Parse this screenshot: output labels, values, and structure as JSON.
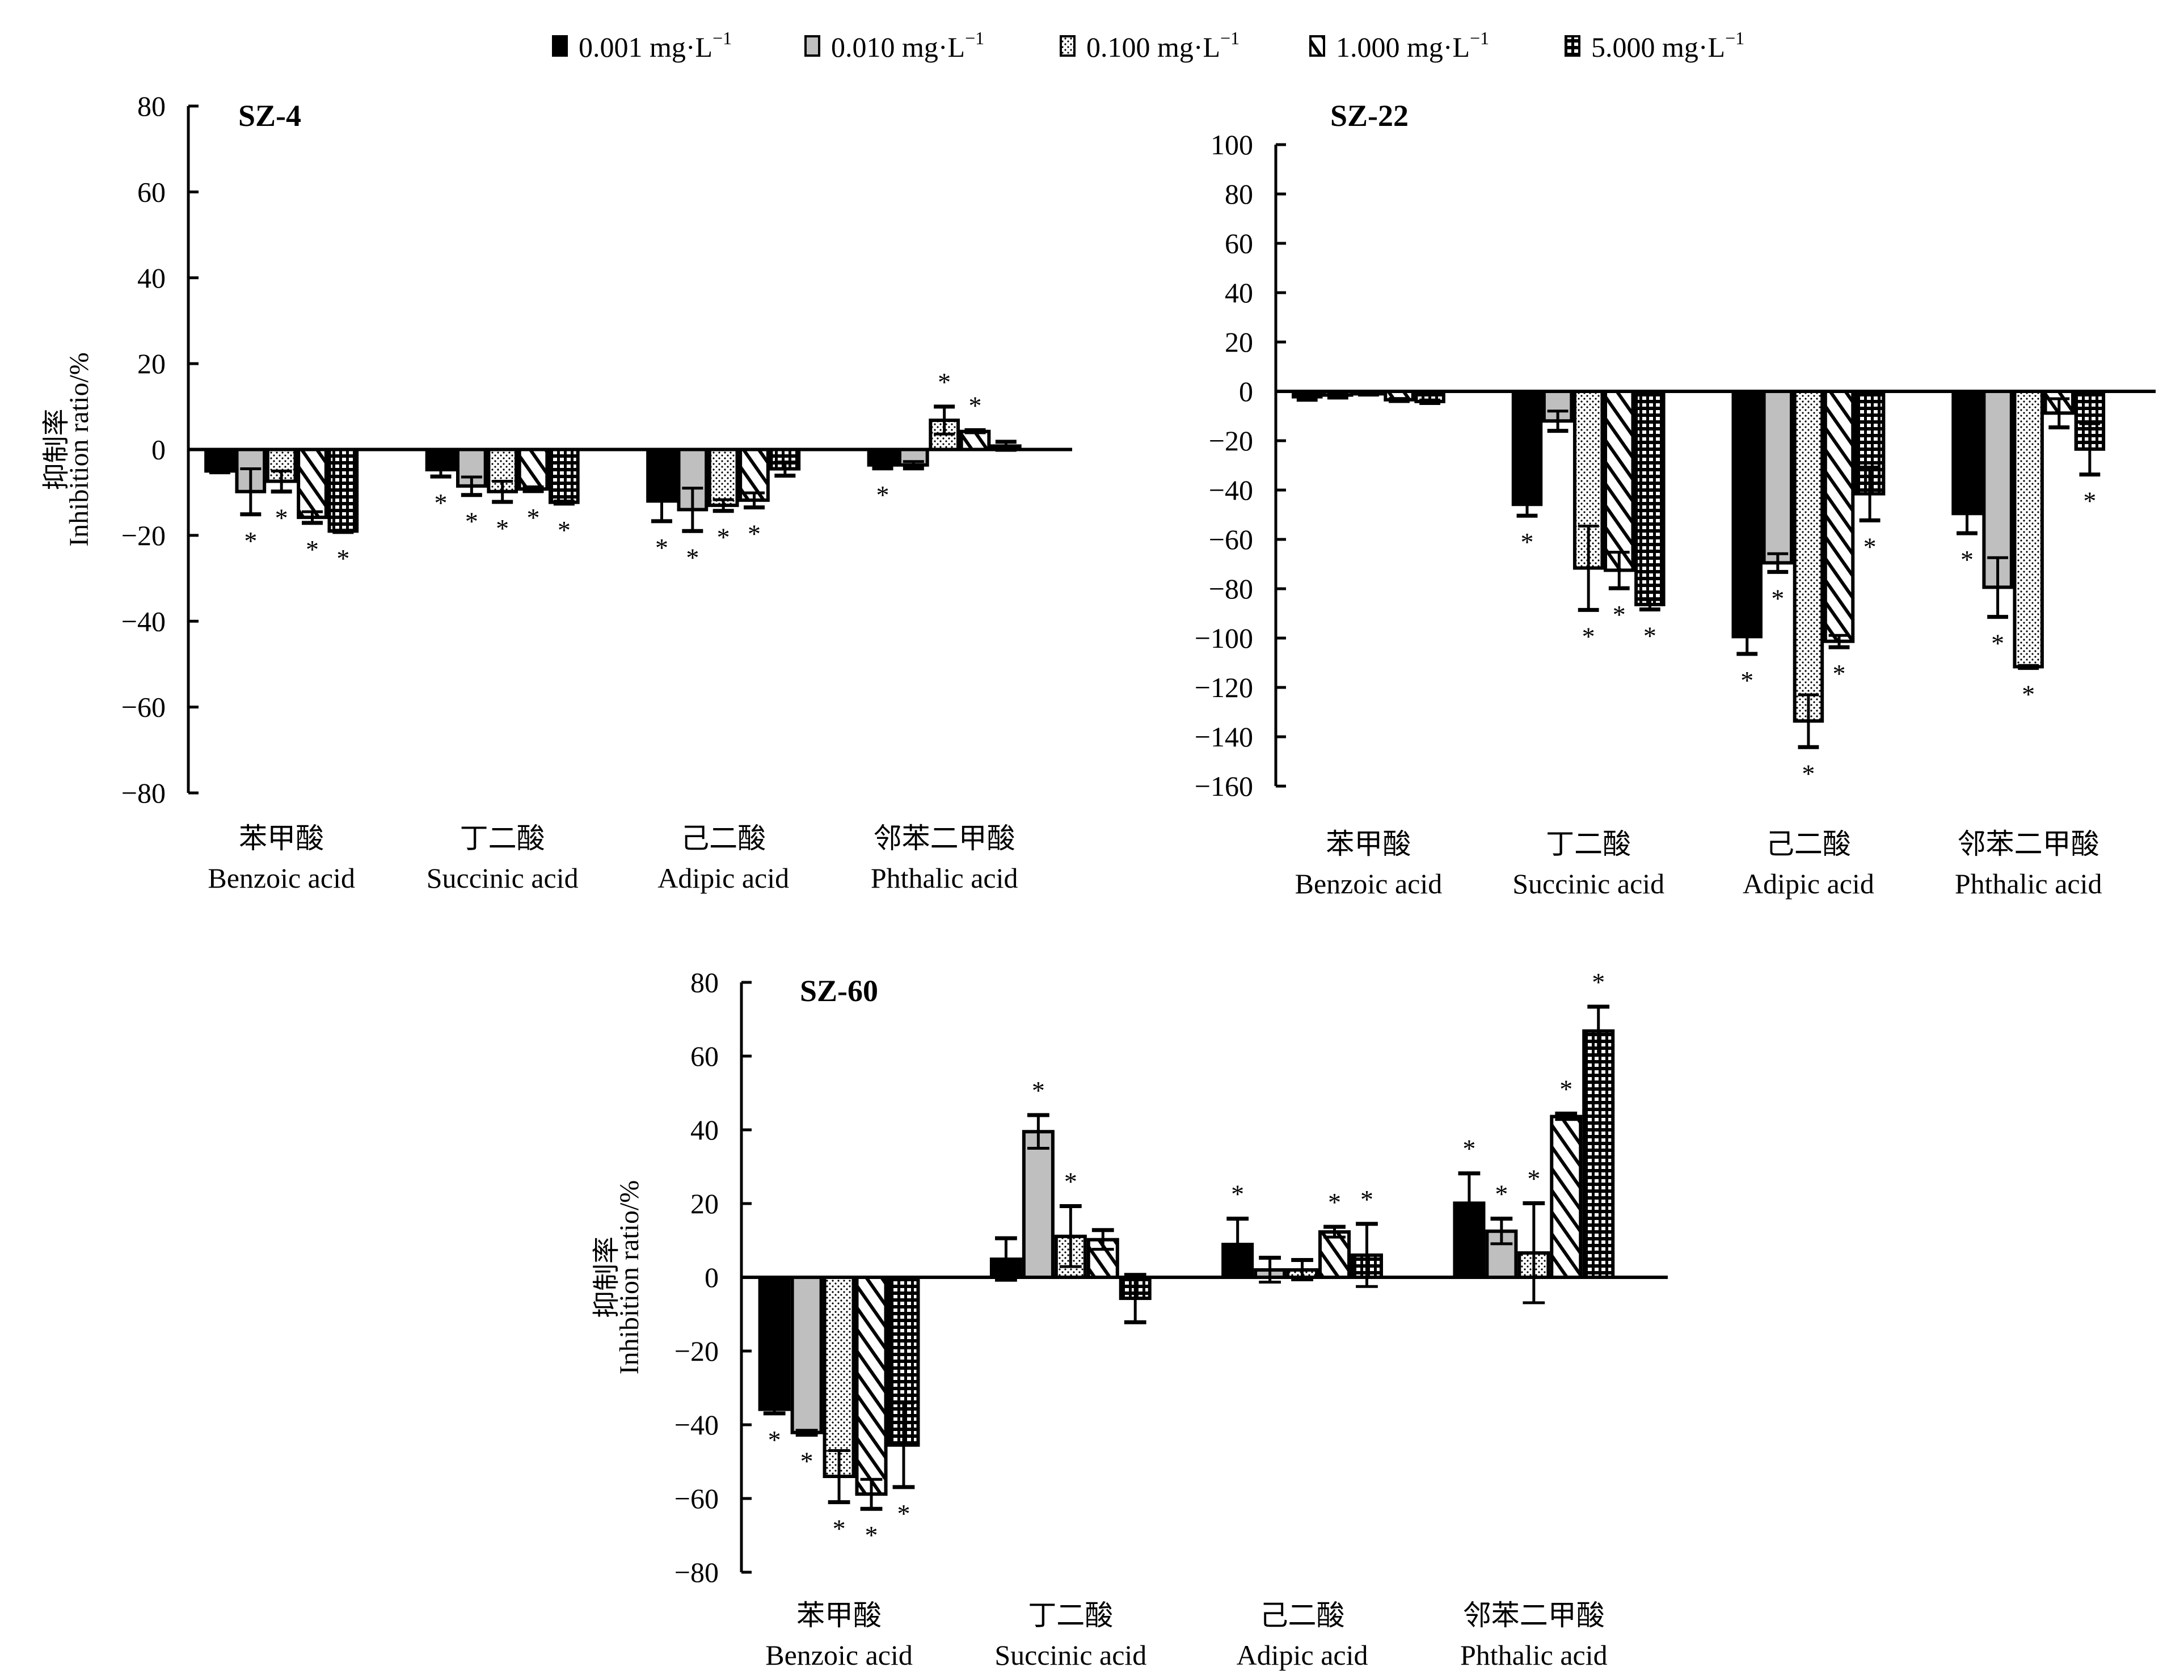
{
  "legend": [
    {
      "label": "0.001 mg·L",
      "sup": "−1",
      "pattern": "solid-black"
    },
    {
      "label": "0.010 mg·L",
      "sup": "−1",
      "pattern": "gray"
    },
    {
      "label": "0.100 mg·L",
      "sup": "−1",
      "pattern": "dots"
    },
    {
      "label": "1.000 mg·L",
      "sup": "−1",
      "pattern": "diagonal"
    },
    {
      "label": "5.000 mg·L",
      "sup": "−1",
      "pattern": "grid"
    }
  ],
  "colors": {
    "black": "#000000",
    "gray": "#bfbfbf",
    "white": "#ffffff"
  },
  "chart_data": [
    {
      "type": "bar",
      "title": "SZ-4",
      "ylabel_cn": "抑制率",
      "ylabel": "Inhibition ratio/%",
      "ylim": [
        -80,
        80
      ],
      "yticks": [
        80,
        60,
        40,
        20,
        0,
        -20,
        -40,
        -60,
        -80
      ],
      "categories": [
        {
          "cn": "苯甲酸",
          "en": "Benzoic acid"
        },
        {
          "cn": "丁二酸",
          "en": "Succinic acid"
        },
        {
          "cn": "己二酸",
          "en": "Adipic acid"
        },
        {
          "cn": "邻苯二甲酸",
          "en": "Phthalic acid"
        }
      ],
      "series": [
        {
          "name": "0.001 mg·L−1",
          "values": [
            -5.0,
            -4.7,
            -12.0,
            -3.6
          ],
          "errors": [
            0.3,
            1.6,
            4.7,
            0.8
          ],
          "significant": [
            false,
            true,
            true,
            true
          ]
        },
        {
          "name": "0.010 mg·L−1",
          "values": [
            -9.8,
            -8.5,
            -14.0,
            -3.6
          ],
          "errors": [
            5.3,
            2.1,
            5.0,
            0.8
          ],
          "significant": [
            true,
            true,
            true,
            false
          ]
        },
        {
          "name": "0.100 mg·L−1",
          "values": [
            -7.4,
            -9.8,
            -13.0,
            6.8
          ],
          "errors": [
            2.4,
            2.4,
            1.3,
            3.2
          ],
          "significant": [
            true,
            true,
            true,
            true
          ]
        },
        {
          "name": "1.000 mg·L−1",
          "values": [
            -15.8,
            -9.2,
            -11.8,
            4.2
          ],
          "errors": [
            1.3,
            0.5,
            1.7,
            0.3
          ],
          "significant": [
            true,
            true,
            true,
            true
          ]
        },
        {
          "name": "5.000 mg·L−1",
          "values": [
            -19.0,
            -12.3,
            -4.5,
            0.8
          ],
          "errors": [
            0.2,
            0.3,
            1.6,
            1.0
          ],
          "significant": [
            true,
            true,
            false,
            false
          ]
        }
      ]
    },
    {
      "type": "bar",
      "title": "SZ-22",
      "ylabel": "",
      "ylim": [
        -160,
        100
      ],
      "yticks": [
        100,
        80,
        60,
        40,
        20,
        0,
        -20,
        -40,
        -60,
        -80,
        -100,
        -120,
        -140,
        -160
      ],
      "categories": [
        {
          "cn": "苯甲酸",
          "en": "Benzoic acid"
        },
        {
          "cn": "丁二酸",
          "en": "Succinic acid"
        },
        {
          "cn": "己二酸",
          "en": "Adipic acid"
        },
        {
          "cn": "邻苯二甲酸",
          "en": "Phthalic acid"
        }
      ],
      "series": [
        {
          "name": "0.001 mg·L−1",
          "values": [
            -2.2,
            -45.8,
            -99.4,
            -49.5
          ],
          "errors": [
            1.2,
            4.6,
            7.0,
            8.0
          ],
          "significant": [
            false,
            true,
            true,
            true
          ]
        },
        {
          "name": "0.010 mg·L−1",
          "values": [
            -1.5,
            -12.0,
            -69.5,
            -79.4
          ],
          "errors": [
            1.0,
            4.0,
            3.7,
            12.0
          ],
          "significant": [
            false,
            false,
            true,
            true
          ]
        },
        {
          "name": "0.100 mg·L−1",
          "values": [
            -1.0,
            -71.6,
            -133.6,
            -111.6
          ],
          "errors": [
            0.3,
            17.0,
            10.6,
            0.5
          ],
          "significant": [
            false,
            true,
            true,
            true
          ]
        },
        {
          "name": "1.000 mg·L−1",
          "values": [
            -3.4,
            -72.5,
            -101.3,
            -8.8
          ],
          "errors": [
            0.5,
            7.3,
            2.4,
            5.8
          ],
          "significant": [
            false,
            true,
            true,
            false
          ]
        },
        {
          "name": "5.000 mg·L−1",
          "values": [
            -4.1,
            -86.4,
            -41.5,
            -23.4
          ],
          "errors": [
            0.6,
            2.0,
            10.8,
            10.3
          ],
          "significant": [
            false,
            true,
            true,
            true
          ]
        }
      ]
    },
    {
      "type": "bar",
      "title": "SZ-60",
      "ylabel_cn": "抑制率",
      "ylabel": "Inhibition ratio/%",
      "ylim": [
        -80,
        80
      ],
      "yticks": [
        80,
        60,
        40,
        20,
        0,
        -20,
        -40,
        -60,
        -80
      ],
      "categories": [
        {
          "cn": "苯甲酸",
          "en": "Benzoic acid"
        },
        {
          "cn": "丁二酸",
          "en": "Succinic acid"
        },
        {
          "cn": "己二酸",
          "en": "Adipic acid"
        },
        {
          "cn": "邻苯二甲酸",
          "en": "Phthalic acid"
        }
      ],
      "series": [
        {
          "name": "0.001 mg·L−1",
          "values": [
            -35.8,
            4.9,
            8.9,
            20.1
          ],
          "errors": [
            1.1,
            5.7,
            7.0,
            8.1
          ],
          "significant": [
            true,
            false,
            true,
            true
          ]
        },
        {
          "name": "0.010 mg·L−1",
          "values": [
            -42.1,
            39.5,
            2.0,
            12.5
          ],
          "errors": [
            0.6,
            4.5,
            3.3,
            3.4
          ],
          "significant": [
            true,
            true,
            false,
            true
          ]
        },
        {
          "name": "0.100 mg·L−1",
          "values": [
            -54.0,
            11.1,
            2.0,
            6.6
          ],
          "errors": [
            7.0,
            8.2,
            2.7,
            13.5
          ],
          "significant": [
            true,
            true,
            false,
            true
          ]
        },
        {
          "name": "1.000 mg·L−1",
          "values": [
            -58.8,
            10.2,
            12.3,
            43.6
          ],
          "errors": [
            4.0,
            2.6,
            1.4,
            0.8
          ],
          "significant": [
            true,
            false,
            true,
            true
          ]
        },
        {
          "name": "5.000 mg·L−1",
          "values": [
            -45.5,
            -5.7,
            6.0,
            66.8
          ],
          "errors": [
            11.4,
            6.5,
            8.5,
            6.6
          ],
          "significant": [
            true,
            false,
            true,
            true
          ]
        }
      ]
    }
  ]
}
